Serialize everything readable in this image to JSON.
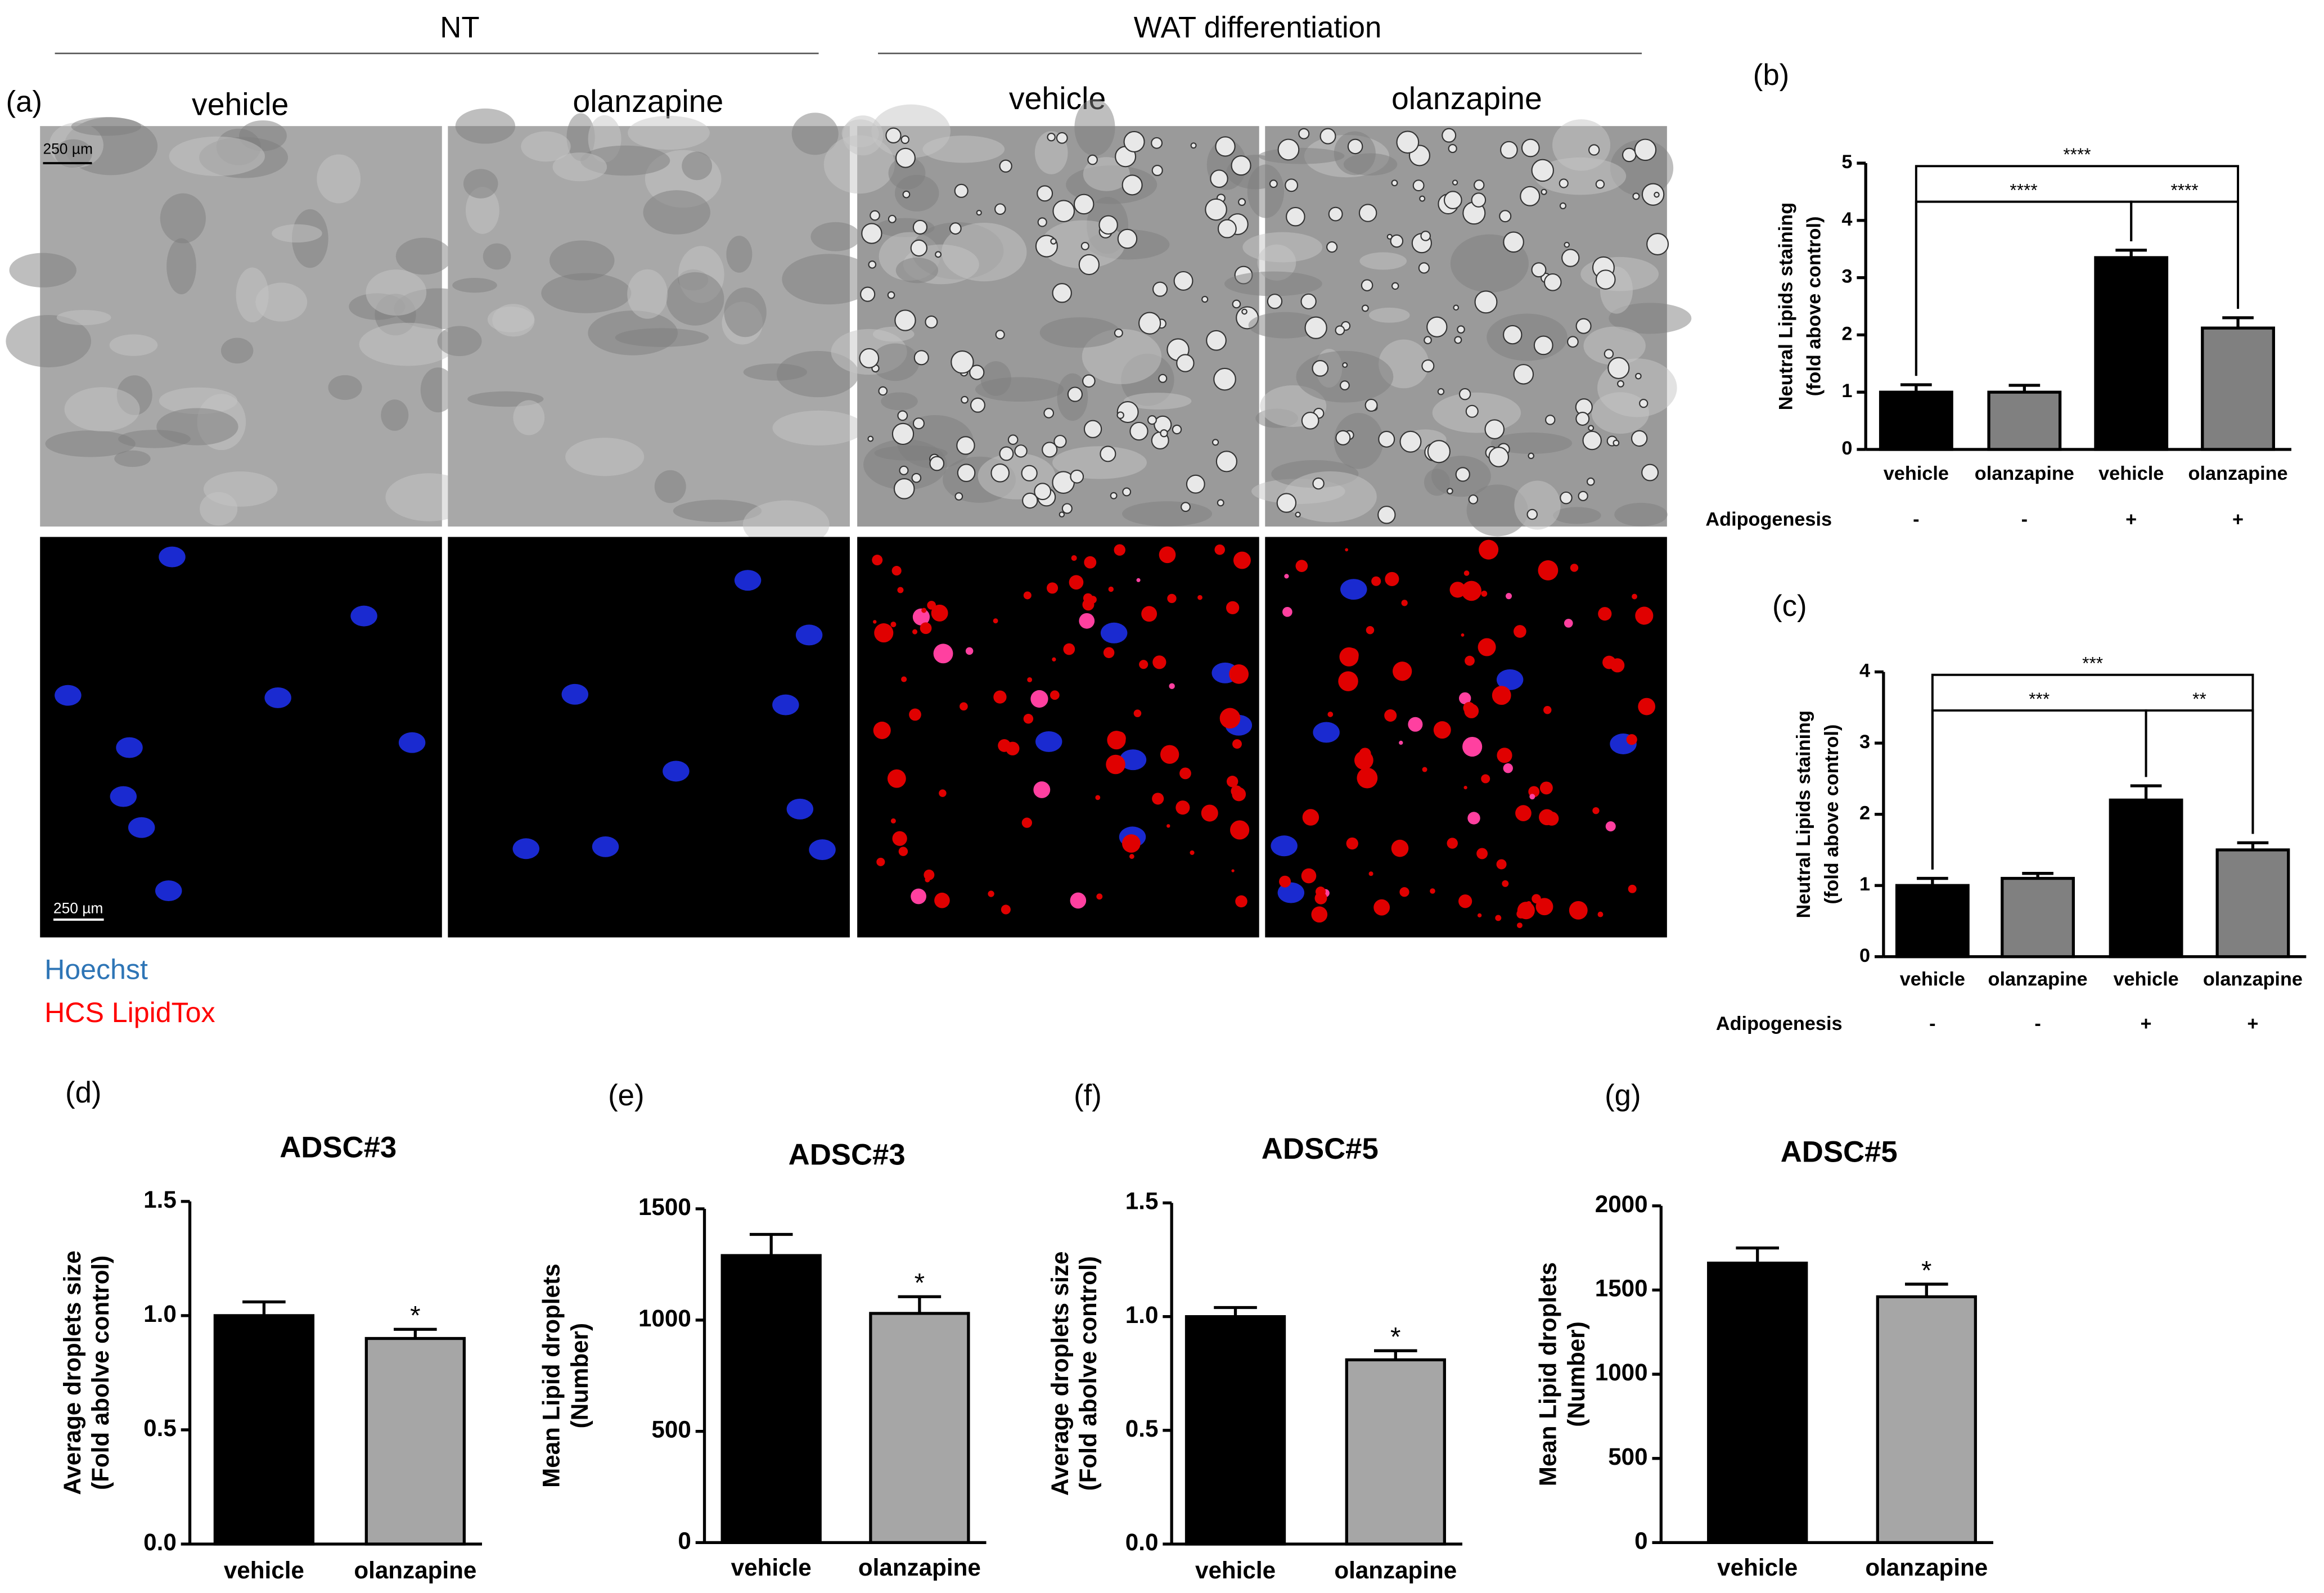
{
  "panel_a": {
    "label": "(a)",
    "groups": [
      "NT",
      "WAT differentiation"
    ],
    "columns": [
      "vehicle",
      "olanzapine",
      "vehicle",
      "olanzapine"
    ],
    "scale_bar": "250 µm",
    "stains": [
      "Hoechst",
      "HCS LipidTox"
    ]
  },
  "chart_data": [
    {
      "type": "bar",
      "label": "(b)",
      "ylabel": [
        "Neutral Lipids staining",
        "(fold above control)"
      ],
      "categories": [
        "vehicle",
        "olanzapine",
        "vehicle",
        "olanzapine"
      ],
      "values": [
        1.0,
        1.0,
        3.35,
        2.12
      ],
      "errors": [
        0.13,
        0.12,
        0.13,
        0.18
      ],
      "colors": [
        "#000000",
        "#808080",
        "#000000",
        "#808080"
      ],
      "ylim": [
        0,
        5
      ],
      "yticks": [
        0,
        1,
        2,
        3,
        4,
        5
      ],
      "row_label": "Adipogenesis",
      "row": [
        "-",
        "-",
        "+",
        "+"
      ],
      "brackets": [
        {
          "from": 0,
          "to": 3,
          "label": "****"
        },
        {
          "from": 0,
          "to": 2,
          "label": "****"
        },
        {
          "from": 2,
          "to": 3,
          "label": "****"
        }
      ]
    },
    {
      "type": "bar",
      "label": "(c)",
      "ylabel": [
        "Neutral Lipids staining",
        "(fold above control)"
      ],
      "categories": [
        "vehicle",
        "olanzapine",
        "vehicle",
        "olanzapine"
      ],
      "values": [
        1.0,
        1.1,
        2.2,
        1.5
      ],
      "errors": [
        0.1,
        0.07,
        0.2,
        0.1
      ],
      "colors": [
        "#000000",
        "#808080",
        "#000000",
        "#808080"
      ],
      "ylim": [
        0,
        4
      ],
      "yticks": [
        0,
        1,
        2,
        3,
        4
      ],
      "row_label": "Adipogenesis",
      "row": [
        "-",
        "-",
        "+",
        "+"
      ],
      "brackets": [
        {
          "from": 0,
          "to": 3,
          "label": "***"
        },
        {
          "from": 0,
          "to": 2,
          "label": "***"
        },
        {
          "from": 2,
          "to": 3,
          "label": "**"
        }
      ]
    },
    {
      "type": "bar",
      "label": "(d)",
      "title": "ADSC#3",
      "ylabel": [
        "Average droplets size",
        "(Fold abolve control)"
      ],
      "categories": [
        "vehicle",
        "olanzapine"
      ],
      "values": [
        1.0,
        0.9
      ],
      "errors": [
        0.06,
        0.04
      ],
      "colors": [
        "#000000",
        "#a6a6a6"
      ],
      "ylim": [
        0,
        1.5
      ],
      "yticks": [
        {
          "value": 0,
          "label": "0.0"
        },
        {
          "value": 0.5,
          "label": "0.5"
        },
        {
          "value": 1,
          "label": "1.0"
        },
        {
          "value": 1.5,
          "label": "1.5"
        }
      ],
      "stars": [
        {
          "index": 1,
          "label": "*"
        }
      ]
    },
    {
      "type": "bar",
      "label": "(e)",
      "title": "ADSC#3",
      "ylabel": [
        "Mean Lipid droplets",
        "(Number)"
      ],
      "categories": [
        "vehicle",
        "olanzapine"
      ],
      "values": [
        1290,
        1030
      ],
      "errors": [
        95,
        75
      ],
      "colors": [
        "#000000",
        "#a6a6a6"
      ],
      "ylim": [
        0,
        1500
      ],
      "yticks": [
        0,
        500,
        1000,
        1500
      ],
      "stars": [
        {
          "index": 1,
          "label": "*"
        }
      ]
    },
    {
      "type": "bar",
      "label": "(f)",
      "title": "ADSC#5",
      "ylabel": [
        "Average droplets size",
        "(Fold abolve control)"
      ],
      "categories": [
        "vehicle",
        "olanzapine"
      ],
      "values": [
        1.0,
        0.81
      ],
      "errors": [
        0.04,
        0.04
      ],
      "colors": [
        "#000000",
        "#a6a6a6"
      ],
      "ylim": [
        0,
        1.5
      ],
      "yticks": [
        {
          "value": 0,
          "label": "0.0"
        },
        {
          "value": 0.5,
          "label": "0.5"
        },
        {
          "value": 1,
          "label": "1.0"
        },
        {
          "value": 1.5,
          "label": "1.5"
        }
      ],
      "stars": [
        {
          "index": 1,
          "label": "*"
        }
      ]
    },
    {
      "type": "bar",
      "label": "(g)",
      "title": "ADSC#5",
      "ylabel": [
        "Mean Lipid droplets",
        "(Number)"
      ],
      "categories": [
        "vehicle",
        "olanzapine"
      ],
      "values": [
        1660,
        1460
      ],
      "errors": [
        90,
        75
      ],
      "colors": [
        "#000000",
        "#a6a6a6"
      ],
      "ylim": [
        0,
        2000
      ],
      "yticks": [
        0,
        500,
        1000,
        1500,
        2000
      ],
      "stars": [
        {
          "index": 1,
          "label": "*"
        }
      ]
    }
  ]
}
